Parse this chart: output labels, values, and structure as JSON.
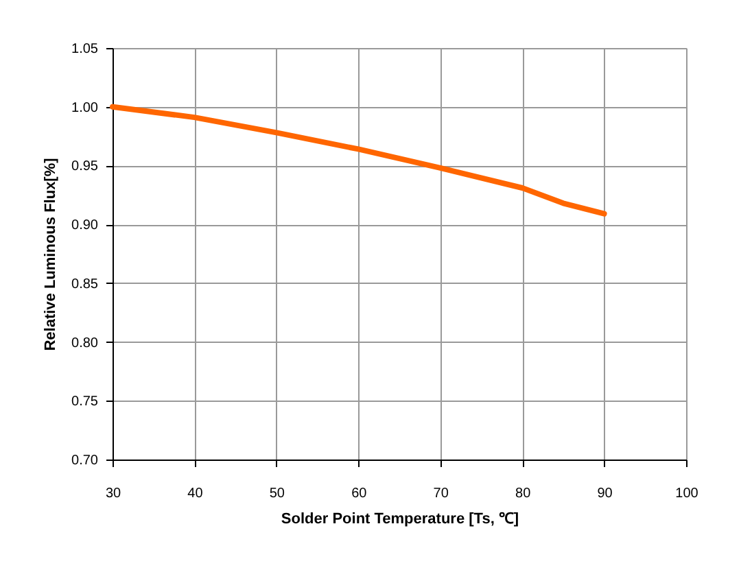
{
  "chart_data": {
    "type": "line",
    "xlabel": "Solder Point Temperature  [Ts, ℃]",
    "ylabel": "Relative Luminous Flux[%]",
    "x": [
      30,
      40,
      50,
      60,
      70,
      80,
      85,
      90
    ],
    "series": [
      {
        "color": "#ff6600",
        "values": [
          1.0,
          0.991,
          0.978,
          0.964,
          0.948,
          0.931,
          0.918,
          0.909
        ]
      }
    ],
    "xlim": [
      30,
      100
    ],
    "xticks": [
      30,
      40,
      50,
      60,
      70,
      80,
      90,
      100
    ],
    "ylim": [
      0.7,
      1.05
    ],
    "yticks": [
      {
        "value": 0.7,
        "label": "0.70"
      },
      {
        "value": 0.75,
        "label": "0.75"
      },
      {
        "value": 0.8,
        "label": "0.80"
      },
      {
        "value": 0.85,
        "label": "0.85"
      },
      {
        "value": 0.9,
        "label": "0.90"
      },
      {
        "value": 0.95,
        "label": "0.95"
      },
      {
        "value": 1.0,
        "label": "1.00"
      },
      {
        "value": 1.05,
        "label": "1.05"
      }
    ],
    "grid": true,
    "legend": false,
    "marker": "none",
    "line_style": "solid"
  }
}
